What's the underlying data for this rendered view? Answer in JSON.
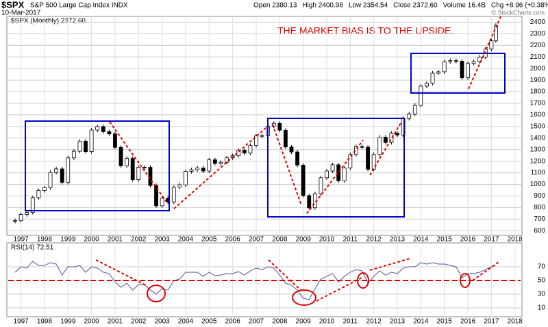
{
  "header": {
    "symbol": "$SPX",
    "name": "S&P 500 Large Cap Index INDX",
    "date": "10-Mar-2017",
    "quote": [
      "Open 2380.13",
      "High 2400.98",
      "Low 2354.54",
      "Close 2372.60",
      "Volume 16.4B",
      "Chg +8.96 (+0.38%)"
    ],
    "credit": "© StockCharts.com"
  },
  "chart_data": [
    {
      "type": "candlestick",
      "legend": "$SPX (Monthly) 2372.60",
      "annotation": "THE MARKET BIAS IS TO THE UPSIDE.",
      "x": [
        1996.75,
        1997.0,
        1997.25,
        1997.5,
        1997.75,
        1998.0,
        1998.25,
        1998.5,
        1998.75,
        1999.0,
        1999.25,
        1999.5,
        1999.75,
        2000.0,
        2000.25,
        2000.5,
        2000.75,
        2001.0,
        2001.25,
        2001.5,
        2001.75,
        2002.0,
        2002.25,
        2002.5,
        2002.75,
        2003.0,
        2003.25,
        2003.5,
        2003.75,
        2004.0,
        2004.25,
        2004.5,
        2004.75,
        2005.0,
        2005.25,
        2005.5,
        2005.75,
        2006.0,
        2006.25,
        2006.5,
        2006.75,
        2007.0,
        2007.25,
        2007.5,
        2007.75,
        2008.0,
        2008.25,
        2008.5,
        2008.75,
        2009.0,
        2009.25,
        2009.5,
        2009.75,
        2010.0,
        2010.25,
        2010.5,
        2010.75,
        2011.0,
        2011.25,
        2011.5,
        2011.75,
        2012.0,
        2012.25,
        2012.5,
        2012.75,
        2013.0,
        2013.25,
        2013.5,
        2013.75,
        2014.0,
        2014.25,
        2014.5,
        2014.75,
        2015.0,
        2015.25,
        2015.5,
        2015.75,
        2016.0,
        2016.25,
        2016.5,
        2016.75,
        2017.0,
        2017.19
      ],
      "values": [
        687,
        740,
        757,
        885,
        947,
        970,
        1102,
        1134,
        1017,
        1229,
        1286,
        1373,
        1283,
        1469,
        1499,
        1455,
        1436,
        1320,
        1160,
        1224,
        1041,
        1148,
        1147,
        990,
        815,
        880,
        848,
        975,
        996,
        1112,
        1126,
        1141,
        1115,
        1212,
        1181,
        1191,
        1229,
        1248,
        1295,
        1270,
        1336,
        1418,
        1421,
        1503,
        1527,
        1468,
        1323,
        1280,
        1166,
        903,
        798,
        919,
        1057,
        1115,
        1169,
        1031,
        1141,
        1258,
        1326,
        1321,
        1131,
        1258,
        1408,
        1362,
        1441,
        1426,
        1569,
        1606,
        1682,
        1848,
        1872,
        1960,
        1972,
        2059,
        2068,
        2063,
        1920,
        2044,
        2060,
        2099,
        2168,
        2239,
        2372.6
      ],
      "xlim": [
        1996.4,
        2018.3
      ],
      "xticks": [
        1997,
        1998,
        1999,
        2000,
        2001,
        2002,
        2003,
        2004,
        2005,
        2006,
        2007,
        2008,
        2009,
        2010,
        2011,
        2012,
        2013,
        2014,
        2015,
        2016,
        2017,
        2018
      ],
      "ylim": [
        560,
        2450
      ],
      "yticks": [
        600,
        700,
        800,
        900,
        1000,
        1100,
        1200,
        1300,
        1400,
        1500,
        1600,
        1700,
        1800,
        1900,
        2000,
        2100,
        2200,
        2300,
        2400
      ],
      "up_color": "#ffffff",
      "down_color": "#000000",
      "grid": true
    },
    {
      "type": "line",
      "legend": "RSI(14) 72.51",
      "color": "#6670a8",
      "x": [
        1996.75,
        1997.0,
        1997.25,
        1997.5,
        1997.75,
        1998.0,
        1998.25,
        1998.5,
        1998.75,
        1999.0,
        1999.25,
        1999.5,
        1999.75,
        2000.0,
        2000.25,
        2000.5,
        2000.75,
        2001.0,
        2001.25,
        2001.5,
        2001.75,
        2002.0,
        2002.25,
        2002.5,
        2002.75,
        2003.0,
        2003.25,
        2003.5,
        2003.75,
        2004.0,
        2004.25,
        2004.5,
        2004.75,
        2005.0,
        2005.25,
        2005.5,
        2005.75,
        2006.0,
        2006.25,
        2006.5,
        2006.75,
        2007.0,
        2007.25,
        2007.5,
        2007.75,
        2008.0,
        2008.25,
        2008.5,
        2008.75,
        2009.0,
        2009.25,
        2009.5,
        2009.75,
        2010.0,
        2010.25,
        2010.5,
        2010.75,
        2011.0,
        2011.25,
        2011.5,
        2011.75,
        2012.0,
        2012.25,
        2012.5,
        2012.75,
        2013.0,
        2013.25,
        2013.5,
        2013.75,
        2014.0,
        2014.25,
        2014.5,
        2014.75,
        2015.0,
        2015.25,
        2015.5,
        2015.75,
        2016.0,
        2016.25,
        2016.5,
        2016.75,
        2017.0,
        2017.19
      ],
      "values": [
        62,
        70,
        68,
        78,
        72,
        72,
        76,
        74,
        58,
        70,
        70,
        72,
        62,
        70,
        68,
        62,
        60,
        48,
        40,
        46,
        36,
        44,
        44,
        36,
        30,
        38,
        36,
        50,
        52,
        62,
        62,
        62,
        56,
        62,
        57,
        58,
        60,
        60,
        63,
        58,
        64,
        68,
        66,
        70,
        68,
        58,
        46,
        43,
        36,
        24,
        22,
        38,
        52,
        56,
        60,
        48,
        56,
        62,
        66,
        64,
        46,
        56,
        64,
        58,
        62,
        60,
        68,
        70,
        70,
        76,
        74,
        76,
        74,
        74,
        72,
        70,
        54,
        60,
        60,
        62,
        66,
        70,
        72.51
      ],
      "xlim": [
        1996.4,
        2018.3
      ],
      "xticks": [
        1997,
        1998,
        1999,
        2000,
        2001,
        2002,
        2003,
        2004,
        2005,
        2006,
        2007,
        2008,
        2009,
        2010,
        2011,
        2012,
        2013,
        2014,
        2015,
        2016,
        2017,
        2018
      ],
      "ylim": [
        0,
        100
      ],
      "yticks": [
        10,
        30,
        50,
        70
      ],
      "grid": true
    }
  ]
}
